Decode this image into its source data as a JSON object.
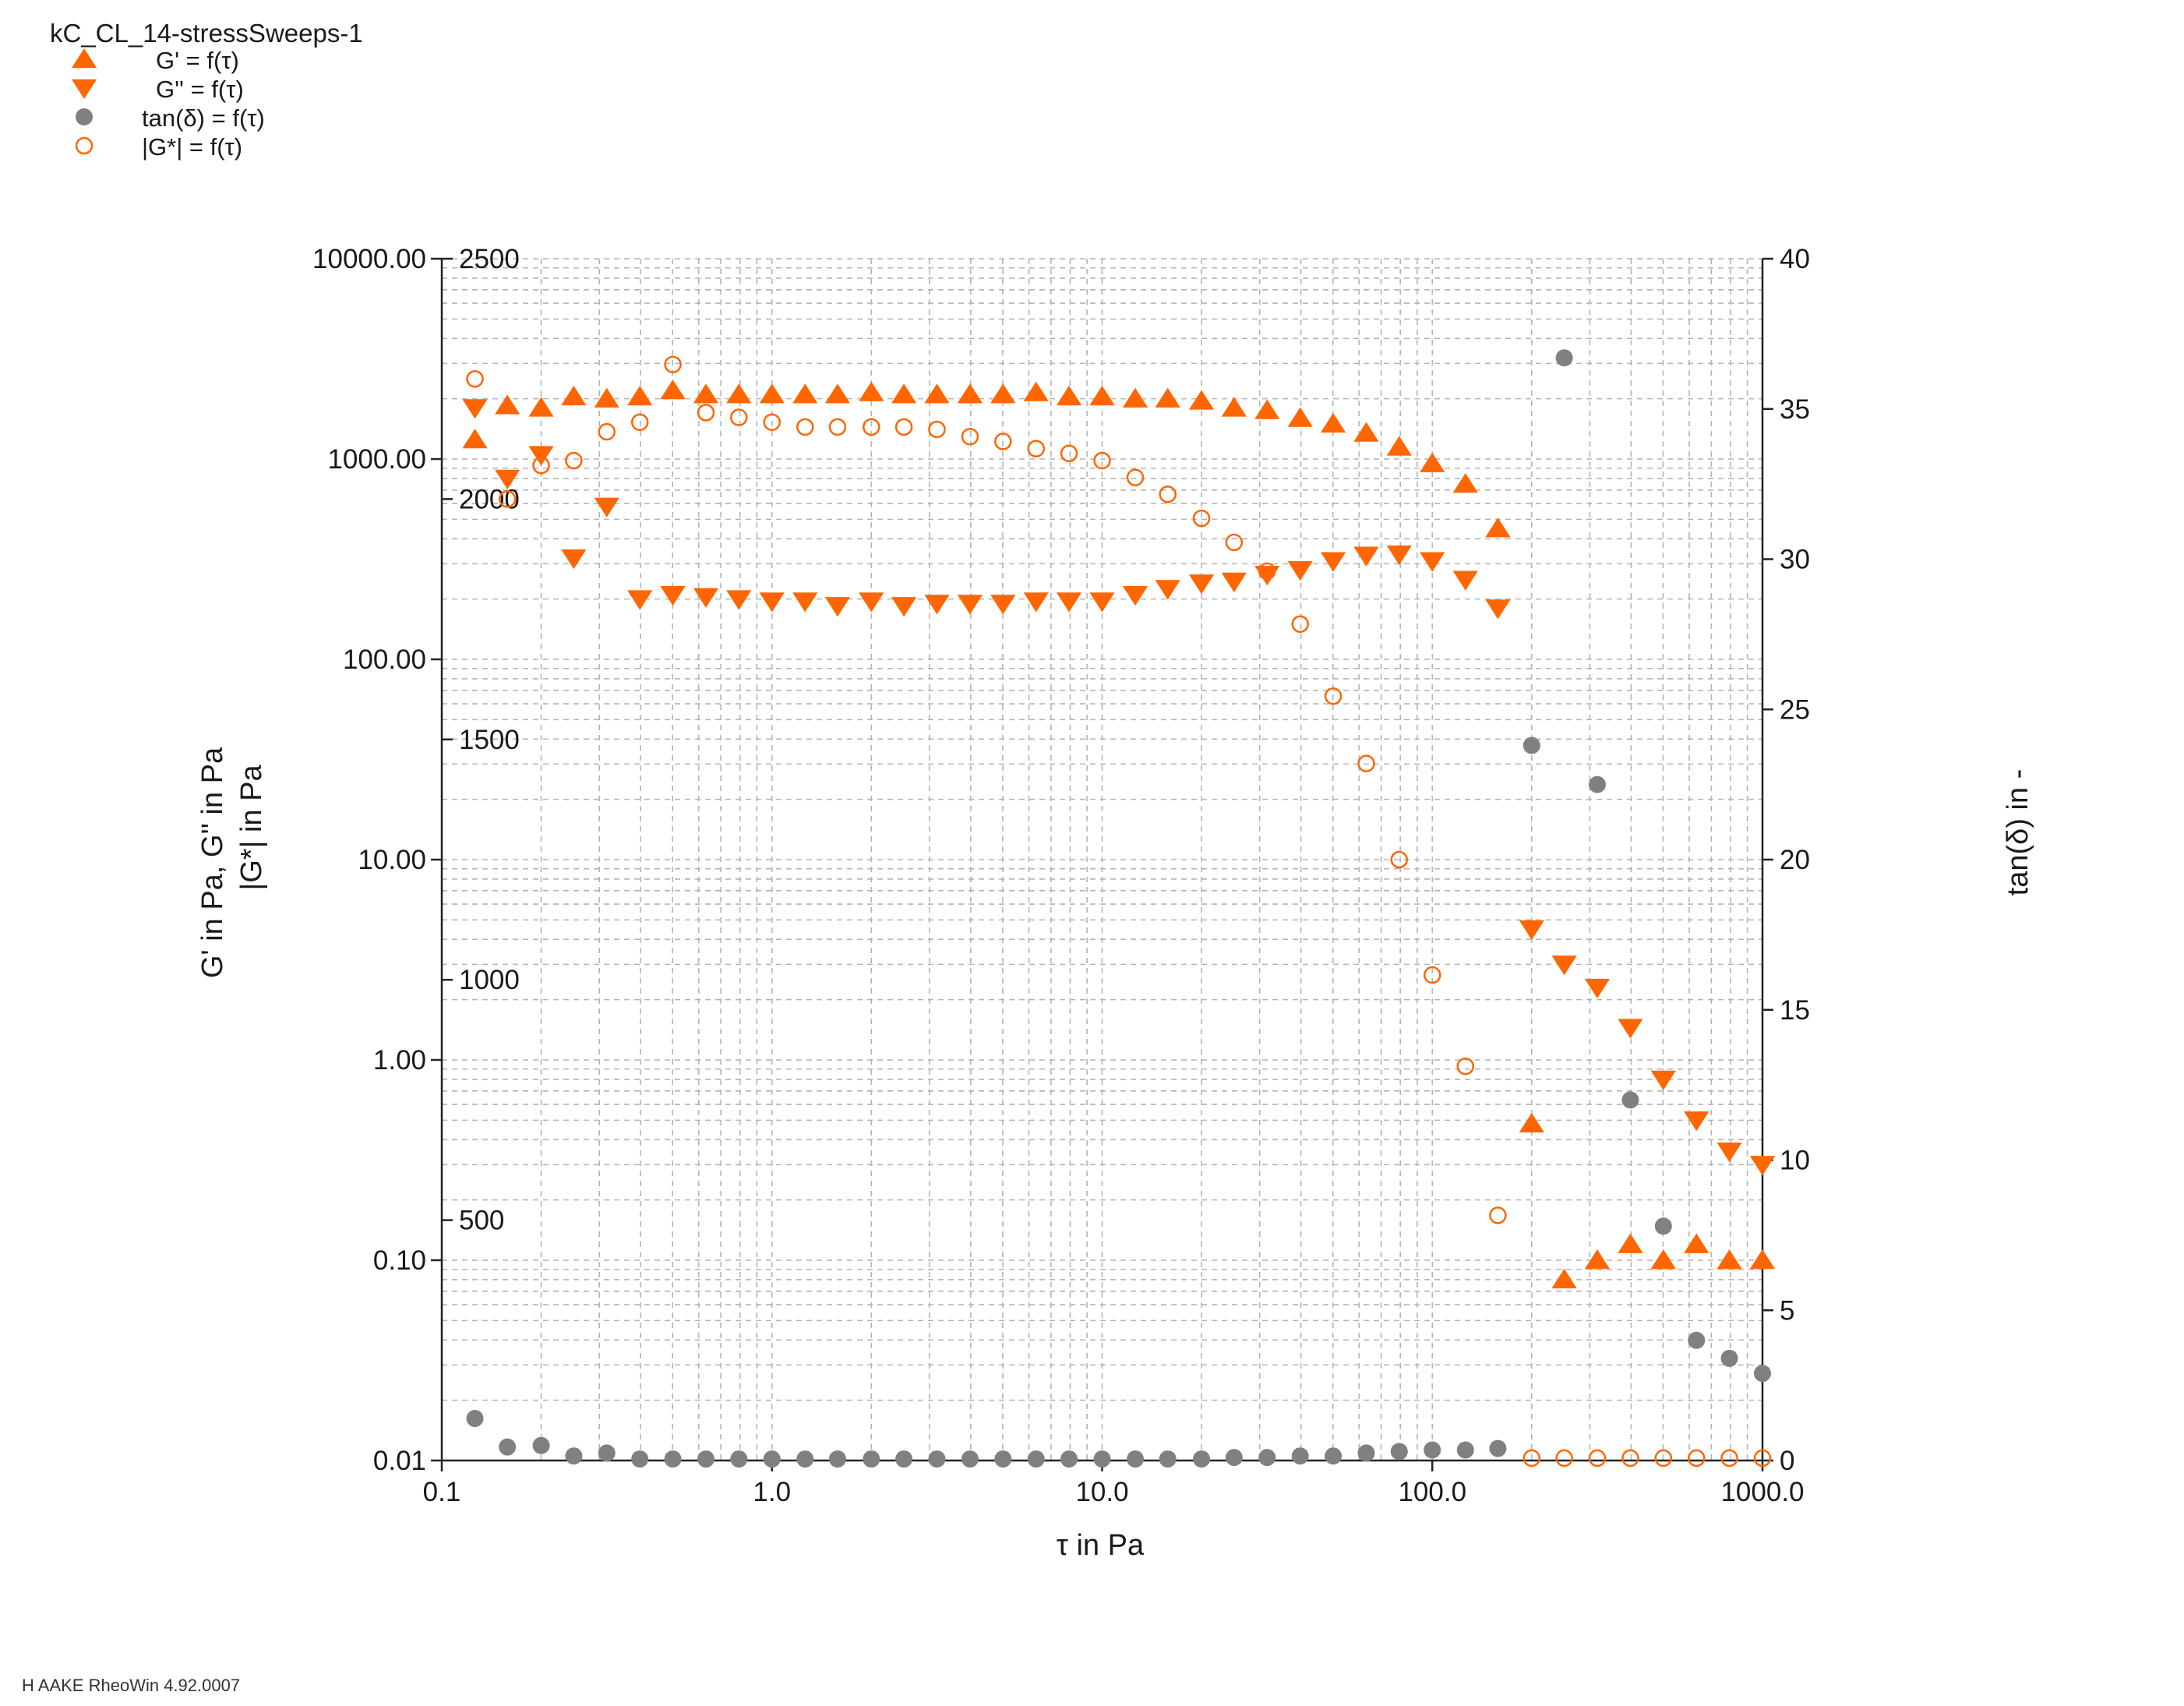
{
  "title": "kC_CL_14-stressSweeps-1",
  "legend": [
    {
      "marker": "triangle-up-filled",
      "label": "G' = f(τ)"
    },
    {
      "marker": "triangle-down-filled",
      "label": "G'' = f(τ)"
    },
    {
      "marker": "circle-filled-gray",
      "label": "tan(δ) = f(τ)"
    },
    {
      "marker": "circle-open",
      "label": "|G*| = f(τ)"
    }
  ],
  "footer": "H AAKE RheoWin 4.92.0007",
  "colors": {
    "orange": "#ff6600",
    "gray": "#808080",
    "grid": "#b4b4b4"
  },
  "chart_data": {
    "type": "scatter",
    "xlabel": "τ in Pa",
    "ylabel_left": "G' in Pa, G'' in Pa",
    "ylabel_left2": "|G*| in Pa",
    "ylabel_right": "tan(δ) in -",
    "xscale": "log",
    "xlim": [
      0.1,
      1000
    ],
    "x_ticks": [
      "0.1",
      "1.0",
      "10.0",
      "100.0",
      "1000.0"
    ],
    "ylim_left_log": [
      0.01,
      10000
    ],
    "y_ticks_left": [
      "0.01",
      "0.10",
      "1.00",
      "10.00",
      "100.00",
      "1000.00",
      "10000.00"
    ],
    "ylim_linear_inner": [
      0,
      2500
    ],
    "y_ticks_inner": [
      "500",
      "1000",
      "1500",
      "2000",
      "2500"
    ],
    "ylim_right": [
      0,
      40
    ],
    "y_ticks_right": [
      "0",
      "5",
      "10",
      "15",
      "20",
      "25",
      "30",
      "35",
      "40"
    ],
    "grid": true,
    "legend_position": "top-left",
    "series": [
      {
        "name": "G' = f(τ)",
        "marker": "triangle-up-filled",
        "axis": "left-log",
        "points": [
          [
            0.126,
            1250
          ],
          [
            0.158,
            1850
          ],
          [
            0.2,
            1800
          ],
          [
            0.251,
            2050
          ],
          [
            0.316,
            2000
          ],
          [
            0.398,
            2050
          ],
          [
            0.501,
            2200
          ],
          [
            0.631,
            2100
          ],
          [
            0.794,
            2100
          ],
          [
            1.0,
            2100
          ],
          [
            1.26,
            2100
          ],
          [
            1.58,
            2100
          ],
          [
            2.0,
            2150
          ],
          [
            2.51,
            2100
          ],
          [
            3.16,
            2100
          ],
          [
            3.98,
            2100
          ],
          [
            5.01,
            2100
          ],
          [
            6.31,
            2150
          ],
          [
            7.94,
            2050
          ],
          [
            10.0,
            2050
          ],
          [
            12.6,
            2000
          ],
          [
            15.8,
            2000
          ],
          [
            20.0,
            1950
          ],
          [
            25.1,
            1800
          ],
          [
            31.6,
            1750
          ],
          [
            39.8,
            1600
          ],
          [
            50.1,
            1500
          ],
          [
            63.1,
            1350
          ],
          [
            79.4,
            1150
          ],
          [
            100,
            950
          ],
          [
            126,
            750
          ],
          [
            158,
            450
          ],
          [
            200,
            0.48
          ],
          [
            251,
            0.08
          ],
          [
            316,
            0.1
          ],
          [
            398,
            0.12
          ],
          [
            501,
            0.1
          ],
          [
            631,
            0.12
          ],
          [
            794,
            0.1
          ],
          [
            1000,
            0.1
          ]
        ]
      },
      {
        "name": "G'' = f(τ)",
        "marker": "triangle-down-filled",
        "axis": "left-log",
        "points": [
          [
            0.126,
            1800
          ],
          [
            0.158,
            800
          ],
          [
            0.2,
            1050
          ],
          [
            0.251,
            320
          ],
          [
            0.316,
            580
          ],
          [
            0.398,
            200
          ],
          [
            0.501,
            210
          ],
          [
            0.631,
            205
          ],
          [
            0.794,
            200
          ],
          [
            1.0,
            195
          ],
          [
            1.26,
            195
          ],
          [
            1.58,
            185
          ],
          [
            2.0,
            195
          ],
          [
            2.51,
            185
          ],
          [
            3.16,
            190
          ],
          [
            3.98,
            190
          ],
          [
            5.01,
            190
          ],
          [
            6.31,
            195
          ],
          [
            7.94,
            195
          ],
          [
            10.0,
            195
          ],
          [
            12.6,
            210
          ],
          [
            15.8,
            225
          ],
          [
            20.0,
            240
          ],
          [
            25.1,
            245
          ],
          [
            31.6,
            265
          ],
          [
            39.8,
            280
          ],
          [
            50.1,
            310
          ],
          [
            63.1,
            330
          ],
          [
            79.4,
            335
          ],
          [
            100,
            310
          ],
          [
            126,
            250
          ],
          [
            158,
            180
          ],
          [
            200,
            4.5
          ],
          [
            251,
            3.0
          ],
          [
            316,
            2.3
          ],
          [
            398,
            1.45
          ],
          [
            501,
            0.8
          ],
          [
            631,
            0.5
          ],
          [
            794,
            0.35
          ],
          [
            1000,
            0.3
          ]
        ]
      },
      {
        "name": "tan(δ) = f(τ)",
        "marker": "circle-filled-gray",
        "axis": "right",
        "points": [
          [
            0.126,
            1.4
          ],
          [
            0.158,
            0.45
          ],
          [
            0.2,
            0.5
          ],
          [
            0.251,
            0.15
          ],
          [
            0.316,
            0.25
          ],
          [
            0.398,
            0.05
          ],
          [
            0.501,
            0.05
          ],
          [
            0.631,
            0.05
          ],
          [
            0.794,
            0.05
          ],
          [
            1.0,
            0.05
          ],
          [
            1.26,
            0.05
          ],
          [
            1.58,
            0.05
          ],
          [
            2.0,
            0.05
          ],
          [
            2.51,
            0.05
          ],
          [
            3.16,
            0.05
          ],
          [
            3.98,
            0.05
          ],
          [
            5.01,
            0.05
          ],
          [
            6.31,
            0.05
          ],
          [
            7.94,
            0.05
          ],
          [
            10.0,
            0.05
          ],
          [
            12.6,
            0.05
          ],
          [
            15.8,
            0.05
          ],
          [
            20.0,
            0.05
          ],
          [
            25.1,
            0.1
          ],
          [
            31.6,
            0.1
          ],
          [
            39.8,
            0.15
          ],
          [
            50.1,
            0.15
          ],
          [
            63.1,
            0.25
          ],
          [
            79.4,
            0.3
          ],
          [
            100,
            0.35
          ],
          [
            126,
            0.35
          ],
          [
            158,
            0.4
          ],
          [
            200,
            23.8
          ],
          [
            251,
            36.7
          ],
          [
            316,
            22.5
          ],
          [
            398,
            12.0
          ],
          [
            501,
            7.8
          ],
          [
            631,
            4.0
          ],
          [
            794,
            3.4
          ],
          [
            1000,
            2.9
          ]
        ]
      },
      {
        "name": "|G*| = f(τ)",
        "marker": "circle-open",
        "axis": "left-linear",
        "points": [
          [
            0.126,
            2250
          ],
          [
            0.158,
            2000
          ],
          [
            0.2,
            2070
          ],
          [
            0.251,
            2080
          ],
          [
            0.316,
            2140
          ],
          [
            0.398,
            2160
          ],
          [
            0.501,
            2280
          ],
          [
            0.631,
            2180
          ],
          [
            0.794,
            2170
          ],
          [
            1.0,
            2160
          ],
          [
            1.26,
            2150
          ],
          [
            1.58,
            2150
          ],
          [
            2.0,
            2150
          ],
          [
            2.51,
            2150
          ],
          [
            3.16,
            2145
          ],
          [
            3.98,
            2130
          ],
          [
            5.01,
            2120
          ],
          [
            6.31,
            2105
          ],
          [
            7.94,
            2095
          ],
          [
            10.0,
            2080
          ],
          [
            12.6,
            2045
          ],
          [
            15.8,
            2010
          ],
          [
            20.0,
            1960
          ],
          [
            25.1,
            1910
          ],
          [
            31.6,
            1850
          ],
          [
            39.8,
            1740
          ],
          [
            50.1,
            1590
          ],
          [
            63.1,
            1450
          ],
          [
            79.4,
            1250
          ],
          [
            100,
            1010
          ],
          [
            126,
            820
          ],
          [
            158,
            510
          ],
          [
            200,
            5
          ],
          [
            251,
            5
          ],
          [
            316,
            5
          ],
          [
            398,
            5
          ],
          [
            501,
            5
          ],
          [
            631,
            5
          ],
          [
            794,
            5
          ],
          [
            1000,
            5
          ]
        ]
      }
    ]
  }
}
